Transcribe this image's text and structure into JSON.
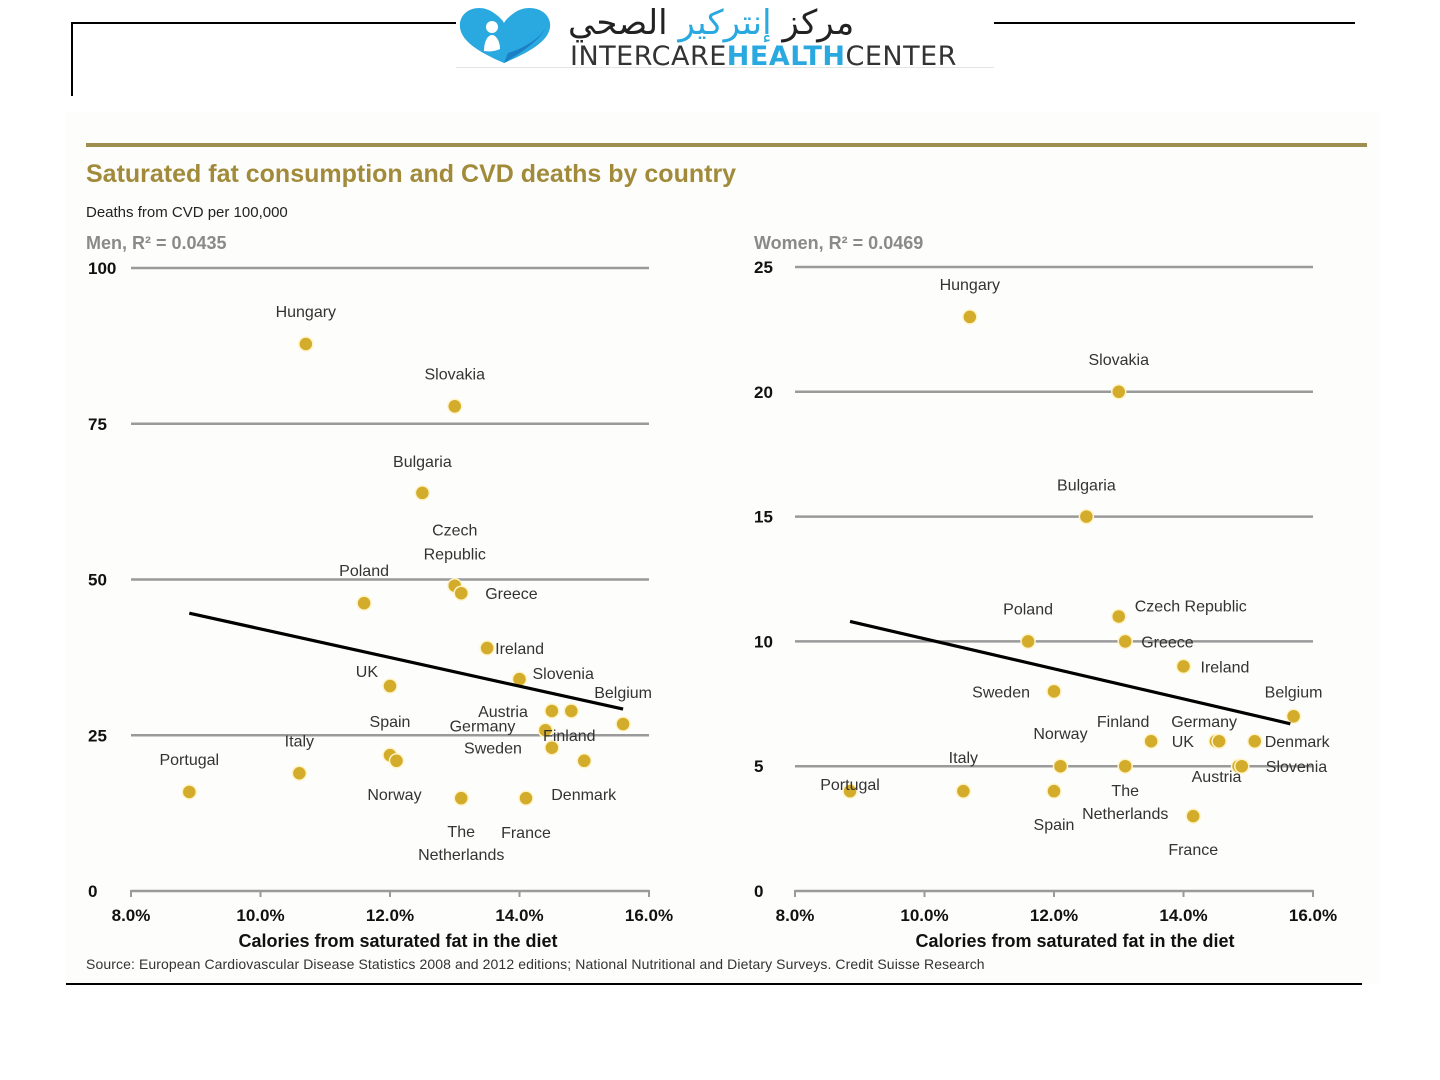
{
  "header": {
    "logo_arabic_prefix": "مركز",
    "logo_arabic_blue": "إنتركير",
    "logo_arabic_suffix": "الصحي",
    "logo_en_part1": "INTERCARE",
    "logo_en_part2": "HEALTH",
    "logo_en_part3": "CENTER"
  },
  "figure": {
    "title": "Saturated fat consumption and CVD deaths by country",
    "y_caption": "Deaths from CVD per 100,000",
    "source": "Source: European Cardiovascular Disease Statistics 2008 and 2012 editions; National Nutritional and Dietary Surveys. Credit Suisse Research"
  },
  "colors": {
    "title": "#a18b3b",
    "rule": "#9f8f4e",
    "dot": "#d4ac2b",
    "grid": "#9a9a9a",
    "trend": "#000000"
  },
  "chart_data": [
    {
      "type": "scatter",
      "title": "Men, R² = 0.0435",
      "xlabel": "Calories from saturated fat in the diet",
      "ylabel": "Deaths from CVD per 100,000",
      "xlim": [
        8,
        16
      ],
      "ylim": [
        0,
        100
      ],
      "xticks": [
        "8.0%",
        "10.0%",
        "12.0%",
        "14.0%",
        "16.0%"
      ],
      "xtick_values": [
        8,
        10,
        12,
        14,
        16
      ],
      "yticks": [
        "0",
        "25",
        "50",
        "75",
        "100"
      ],
      "ytick_values": [
        0,
        25,
        50,
        75,
        100
      ],
      "grid": true,
      "r_squared": 0.0435,
      "trendline": {
        "x": [
          8.9,
          15.6
        ],
        "y": [
          44.6,
          29.2
        ]
      },
      "points": [
        {
          "label": "Hungary",
          "x": 10.7,
          "y": 87.8
        },
        {
          "label": "Slovakia",
          "x": 13.0,
          "y": 77.8
        },
        {
          "label": "Bulgaria",
          "x": 12.5,
          "y": 63.9
        },
        {
          "label": "Czech Republic",
          "x": 13.0,
          "y": 49.0
        },
        {
          "label": "Greece",
          "x": 13.1,
          "y": 47.8
        },
        {
          "label": "Poland",
          "x": 11.6,
          "y": 46.2
        },
        {
          "label": "Ireland",
          "x": 13.5,
          "y": 39.0
        },
        {
          "label": "Slovenia",
          "x": 14.0,
          "y": 34.0
        },
        {
          "label": "UK",
          "x": 12.0,
          "y": 32.9
        },
        {
          "label": "Austria",
          "x": 14.5,
          "y": 28.9
        },
        {
          "label": "Finland",
          "x": 14.8,
          "y": 28.9
        },
        {
          "label": "Belgium",
          "x": 15.6,
          "y": 26.8
        },
        {
          "label": "Germany",
          "x": 14.4,
          "y": 25.8
        },
        {
          "label": "Sweden",
          "x": 14.5,
          "y": 23.0
        },
        {
          "label": "Spain",
          "x": 12.0,
          "y": 21.8
        },
        {
          "label": "Norway",
          "x": 12.1,
          "y": 20.9
        },
        {
          "label": "Denmark",
          "x": 15.0,
          "y": 20.9
        },
        {
          "label": "Italy",
          "x": 10.6,
          "y": 18.9
        },
        {
          "label": "Portugal",
          "x": 8.9,
          "y": 15.9
        },
        {
          "label": "The Netherlands",
          "x": 13.1,
          "y": 14.9
        },
        {
          "label": "France",
          "x": 14.1,
          "y": 14.9
        }
      ],
      "annotations": [
        {
          "text": "Hungary",
          "for": "Hungary"
        },
        {
          "text": "Slovakia",
          "for": "Slovakia"
        },
        {
          "text": "Bulgaria",
          "for": "Bulgaria"
        },
        {
          "text": "Czech",
          "for": "Czech Republic"
        },
        {
          "text": "Republic",
          "for": "Czech Republic"
        },
        {
          "text": "Poland",
          "for": "Poland"
        },
        {
          "text": "Greece",
          "for": "Greece"
        },
        {
          "text": "Finland",
          "for": "Finland"
        },
        {
          "text": "Ireland",
          "for": "Ireland"
        },
        {
          "text": "Slovenia",
          "for": "Slovenia"
        },
        {
          "text": "UK",
          "for": "UK"
        },
        {
          "text": "Belgium",
          "for": "Belgium"
        },
        {
          "text": "Austria",
          "for": "Austria"
        },
        {
          "text": "Germany",
          "for": "Germany"
        },
        {
          "text": "Sweden",
          "for": "Sweden"
        },
        {
          "text": "Spain",
          "for": "Spain"
        },
        {
          "text": "Italy",
          "for": "Italy"
        },
        {
          "text": "Portugal",
          "for": "Portugal"
        },
        {
          "text": "Norway",
          "for": "Norway"
        },
        {
          "text": "Denmark",
          "for": "Denmark"
        },
        {
          "text": "The",
          "for": "The Netherlands"
        },
        {
          "text": "Netherlands",
          "for": "The Netherlands"
        },
        {
          "text": "France",
          "for": "France"
        }
      ]
    },
    {
      "type": "scatter",
      "title": "Women, R² = 0.0469",
      "xlabel": "Calories from saturated fat in the diet",
      "ylabel": "Deaths from CVD per 100,000",
      "xlim": [
        8,
        16
      ],
      "ylim": [
        0,
        25
      ],
      "xticks": [
        "8.0%",
        "10.0%",
        "12.0%",
        "14.0%",
        "16.0%"
      ],
      "xtick_values": [
        8,
        10,
        12,
        14,
        16
      ],
      "yticks": [
        "0",
        "5",
        "10",
        "15",
        "20",
        "25"
      ],
      "ytick_values": [
        0,
        5,
        10,
        15,
        20,
        25
      ],
      "grid": true,
      "r_squared": 0.0469,
      "trendline": {
        "x": [
          8.85,
          15.65
        ],
        "y": [
          10.8,
          6.7
        ]
      },
      "points": [
        {
          "label": "Hungary",
          "x": 10.7,
          "y": 23.0
        },
        {
          "label": "Slovakia",
          "x": 13.0,
          "y": 20.0
        },
        {
          "label": "Bulgaria",
          "x": 12.5,
          "y": 15.0
        },
        {
          "label": "Czech Republic",
          "x": 13.0,
          "y": 11.0
        },
        {
          "label": "Greece",
          "x": 13.1,
          "y": 10.0
        },
        {
          "label": "Poland",
          "x": 11.6,
          "y": 10.0
        },
        {
          "label": "Ireland",
          "x": 14.0,
          "y": 9.0
        },
        {
          "label": "Sweden",
          "x": 12.0,
          "y": 8.0
        },
        {
          "label": "Belgium",
          "x": 15.7,
          "y": 7.0
        },
        {
          "label": "Finland",
          "x": 13.5,
          "y": 6.0
        },
        {
          "label": "UK",
          "x": 14.5,
          "y": 6.0
        },
        {
          "label": "Germany",
          "x": 14.55,
          "y": 6.0
        },
        {
          "label": "Denmark",
          "x": 15.1,
          "y": 6.0
        },
        {
          "label": "Norway",
          "x": 12.1,
          "y": 5.0
        },
        {
          "label": "The Netherlands",
          "x": 13.1,
          "y": 5.0
        },
        {
          "label": "Austria",
          "x": 14.85,
          "y": 5.0
        },
        {
          "label": "Slovenia",
          "x": 14.9,
          "y": 5.0
        },
        {
          "label": "Portugal",
          "x": 8.85,
          "y": 4.0
        },
        {
          "label": "Italy",
          "x": 10.6,
          "y": 4.0
        },
        {
          "label": "Spain",
          "x": 12.0,
          "y": 4.0
        },
        {
          "label": "France",
          "x": 14.15,
          "y": 3.0
        }
      ],
      "annotations": [
        {
          "text": "Hungary",
          "for": "Hungary"
        },
        {
          "text": "Slovakia",
          "for": "Slovakia"
        },
        {
          "text": "Bulgaria",
          "for": "Bulgaria"
        },
        {
          "text": "Poland",
          "for": "Poland"
        },
        {
          "text": "Czech Republic",
          "for": "Czech Republic"
        },
        {
          "text": "Greece",
          "for": "Greece"
        },
        {
          "text": "Ireland",
          "for": "Ireland"
        },
        {
          "text": "Sweden",
          "for": "Sweden"
        },
        {
          "text": "Belgium",
          "for": "Belgium"
        },
        {
          "text": "Finland",
          "for": "Finland"
        },
        {
          "text": "Germany",
          "for": "Germany"
        },
        {
          "text": "UK",
          "for": "UK"
        },
        {
          "text": "Austria",
          "for": "Austria"
        },
        {
          "text": "Denmark",
          "for": "Denmark"
        },
        {
          "text": "Norway",
          "for": "Norway"
        },
        {
          "text": "Slovenia",
          "for": "Slovenia"
        },
        {
          "text": "Portugal",
          "for": "Portugal"
        },
        {
          "text": "Italy",
          "for": "Italy"
        },
        {
          "text": "The",
          "for": "The Netherlands"
        },
        {
          "text": "Netherlands",
          "for": "The Netherlands"
        },
        {
          "text": "Spain",
          "for": "Spain"
        },
        {
          "text": "France",
          "for": "France"
        }
      ]
    }
  ]
}
